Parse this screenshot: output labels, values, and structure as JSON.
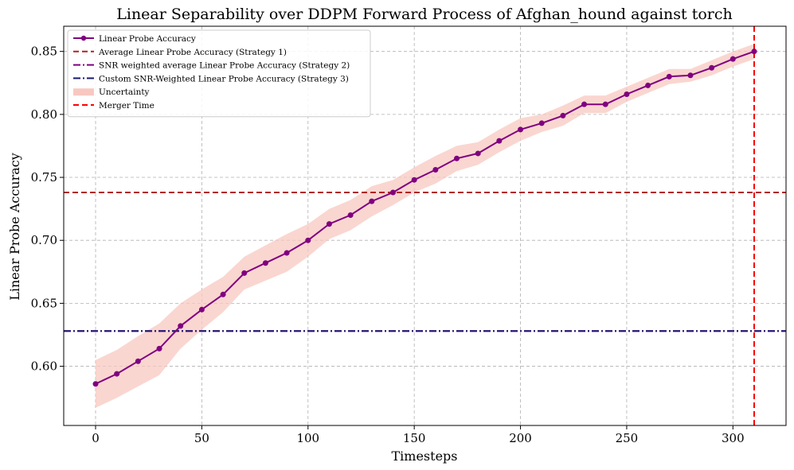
{
  "chart_data": {
    "type": "line",
    "title": "Linear Separability over DDPM Forward Process of Afghan_hound against torch",
    "xlabel": "Timesteps",
    "ylabel": "Linear Probe Accuracy",
    "xlim": [
      -15,
      325
    ],
    "ylim": [
      0.553,
      0.87
    ],
    "grid": true,
    "x_ticks": [
      0,
      50,
      100,
      150,
      200,
      250,
      300
    ],
    "y_ticks": [
      0.6,
      0.65,
      0.7,
      0.75,
      0.8,
      0.85
    ],
    "x_tick_labels": [
      "0",
      "50",
      "100",
      "150",
      "200",
      "250",
      "300"
    ],
    "y_tick_labels": [
      "0.60",
      "0.65",
      "0.70",
      "0.75",
      "0.80",
      "0.85"
    ],
    "legend_position": "top-left",
    "series": [
      {
        "name": "Linear Probe Accuracy",
        "color": "#800080",
        "x": [
          0,
          10,
          20,
          30,
          40,
          50,
          60,
          70,
          80,
          90,
          100,
          110,
          120,
          130,
          140,
          150,
          160,
          170,
          180,
          190,
          200,
          210,
          220,
          230,
          240,
          250,
          260,
          270,
          280,
          290,
          300,
          310
        ],
        "y": [
          0.586,
          0.594,
          0.604,
          0.614,
          0.632,
          0.645,
          0.657,
          0.674,
          0.682,
          0.69,
          0.7,
          0.713,
          0.72,
          0.731,
          0.738,
          0.748,
          0.756,
          0.765,
          0.769,
          0.779,
          0.788,
          0.793,
          0.799,
          0.808,
          0.808,
          0.816,
          0.823,
          0.83,
          0.831,
          0.837,
          0.844,
          0.85
        ]
      }
    ],
    "uncertainty": {
      "name": "Uncertainty",
      "color": "#f8c8c0",
      "lower": [
        0.567,
        0.575,
        0.584,
        0.593,
        0.614,
        0.629,
        0.643,
        0.661,
        0.668,
        0.675,
        0.687,
        0.701,
        0.708,
        0.719,
        0.728,
        0.738,
        0.745,
        0.755,
        0.76,
        0.77,
        0.779,
        0.786,
        0.791,
        0.801,
        0.801,
        0.81,
        0.817,
        0.824,
        0.826,
        0.831,
        0.838,
        0.844
      ],
      "upper": [
        0.605,
        0.613,
        0.624,
        0.634,
        0.65,
        0.661,
        0.671,
        0.687,
        0.696,
        0.705,
        0.713,
        0.725,
        0.732,
        0.743,
        0.748,
        0.758,
        0.767,
        0.775,
        0.778,
        0.788,
        0.797,
        0.8,
        0.807,
        0.815,
        0.815,
        0.822,
        0.829,
        0.836,
        0.836,
        0.843,
        0.85,
        0.856
      ]
    },
    "reference_lines": [
      {
        "name": "Average Linear Probe Accuracy (Strategy 1)",
        "orientation": "horizontal",
        "value": 0.738,
        "color": "#b22222",
        "style": "dashed"
      },
      {
        "name": "SNR weighted average Linear Probe Accuracy (Strategy 2)",
        "orientation": "horizontal",
        "value": 0.628,
        "color": "#800080",
        "style": "dashdot"
      },
      {
        "name": "Custom SNR-Weighted Linear Probe Accuracy (Strategy 3)",
        "orientation": "horizontal",
        "value": 0.628,
        "color": "#191970",
        "style": "dashdot"
      },
      {
        "name": "Merger Time",
        "orientation": "vertical",
        "value": 310,
        "color": "#ff0000",
        "style": "dashed"
      }
    ],
    "legend": [
      {
        "label": "Linear Probe Accuracy",
        "kind": "line-marker",
        "color": "#800080"
      },
      {
        "label": "Average Linear Probe Accuracy (Strategy 1)",
        "kind": "dashed",
        "color": "#b22222"
      },
      {
        "label": "SNR weighted average Linear Probe Accuracy (Strategy 2)",
        "kind": "dashdot",
        "color": "#800080"
      },
      {
        "label": "Custom SNR-Weighted Linear Probe Accuracy (Strategy 3)",
        "kind": "dashdot",
        "color": "#191970"
      },
      {
        "label": "Uncertainty",
        "kind": "patch",
        "color": "#f8c8c0"
      },
      {
        "label": "Merger Time",
        "kind": "dashed",
        "color": "#ff0000"
      }
    ]
  }
}
